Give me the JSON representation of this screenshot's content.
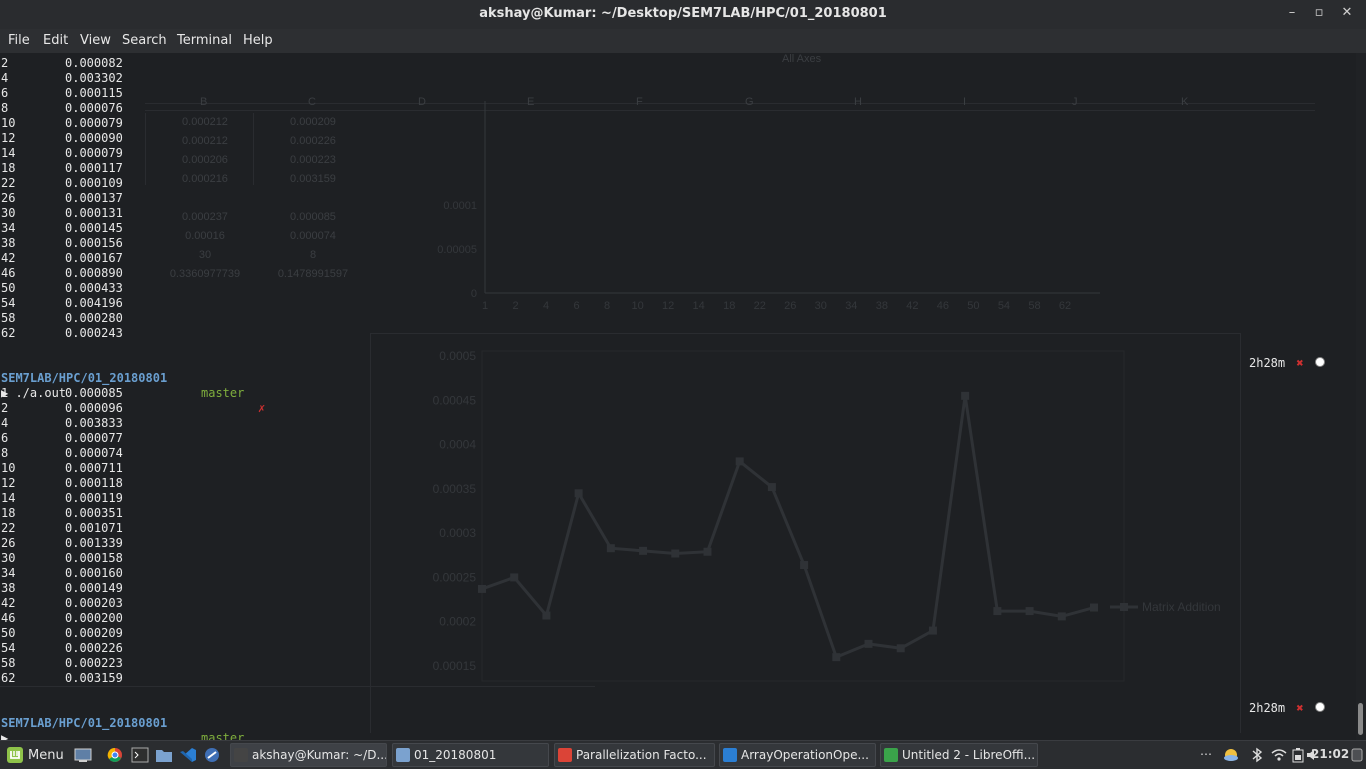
{
  "window": {
    "title": "akshay@Kumar: ~/Desktop/SEM7LAB/HPC/01_20180801",
    "minimize_glyph": "–",
    "restore_glyph": "▫",
    "close_glyph": "✕"
  },
  "menu": [
    "File",
    "Edit",
    "View",
    "Search",
    "Terminal",
    "Help"
  ],
  "terminal": {
    "first_output": [
      [
        "2",
        "0.000082"
      ],
      [
        "4",
        "0.003302"
      ],
      [
        "6",
        "0.000115"
      ],
      [
        "8",
        "0.000076"
      ],
      [
        "10",
        "0.000079"
      ],
      [
        "12",
        "0.000090"
      ],
      [
        "14",
        "0.000079"
      ],
      [
        "18",
        "0.000117"
      ],
      [
        "22",
        "0.000109"
      ],
      [
        "26",
        "0.000137"
      ],
      [
        "30",
        "0.000131"
      ],
      [
        "34",
        "0.000145"
      ],
      [
        "38",
        "0.000156"
      ],
      [
        "42",
        "0.000167"
      ],
      [
        "46",
        "0.000890"
      ],
      [
        "50",
        "0.000433"
      ],
      [
        "54",
        "0.004196"
      ],
      [
        "58",
        "0.000280"
      ],
      [
        "62",
        "0.000243"
      ]
    ],
    "prompt1": {
      "path": "SEM7LAB/HPC/01_20180801",
      "branch": "master",
      "mark": "✗",
      "elapsed": "2h28m",
      "elapsed_mark": "✖"
    },
    "command": "▶ ./a.out",
    "second_output": [
      [
        "1",
        "0.000085"
      ],
      [
        "2",
        "0.000096"
      ],
      [
        "4",
        "0.003833"
      ],
      [
        "6",
        "0.000077"
      ],
      [
        "8",
        "0.000074"
      ],
      [
        "10",
        "0.000711"
      ],
      [
        "12",
        "0.000118"
      ],
      [
        "14",
        "0.000119"
      ],
      [
        "18",
        "0.000351"
      ],
      [
        "22",
        "0.001071"
      ],
      [
        "26",
        "0.001339"
      ],
      [
        "30",
        "0.000158"
      ],
      [
        "34",
        "0.000160"
      ],
      [
        "38",
        "0.000149"
      ],
      [
        "42",
        "0.000203"
      ],
      [
        "46",
        "0.000200"
      ],
      [
        "50",
        "0.000209"
      ],
      [
        "54",
        "0.000226"
      ],
      [
        "58",
        "0.000223"
      ],
      [
        "62",
        "0.003159"
      ]
    ],
    "prompt2": {
      "path": "SEM7LAB/HPC/01_20180801",
      "branch": "master",
      "mark": "✗",
      "elapsed": "2h28m",
      "elapsed_mark": "✖"
    },
    "cursor_line": "▶ _"
  },
  "background_sheet": {
    "columns": [
      "B",
      "C",
      "D",
      "E",
      "F",
      "G",
      "H",
      "I",
      "J",
      "K"
    ],
    "cells_b": [
      "0.000212",
      "0.000212",
      "0.000206",
      "0.000216",
      "",
      "0.000237",
      "0.00016",
      "30",
      "0.3360977739"
    ],
    "cells_c": [
      "0.000209",
      "0.000226",
      "0.000223",
      "0.003159",
      "",
      "0.000085",
      "0.000074",
      "8",
      "0.1478991597"
    ],
    "toolbar_text": "All Axes"
  },
  "chart_data": [
    {
      "type": "line",
      "title": "",
      "xlabel": "",
      "ylabel": "",
      "categories": [
        "1",
        "2",
        "4",
        "6",
        "8",
        "10",
        "12",
        "14",
        "18",
        "22",
        "26",
        "30",
        "34",
        "38",
        "42",
        "46",
        "50",
        "54",
        "58",
        "62"
      ],
      "ylim": [
        0,
        0.00015
      ],
      "ytick_labels": [
        "0",
        "0.00005",
        "0.0001"
      ],
      "series": []
    },
    {
      "type": "line",
      "title": "",
      "ylim": [
        0.00015,
        0.0005
      ],
      "ytick_labels": [
        "0.00015",
        "0.0002",
        "0.00025",
        "0.0003",
        "0.00035",
        "0.0004",
        "0.00045",
        "0.0005"
      ],
      "legend": "right",
      "series": [
        {
          "name": "Matrix Addition",
          "values": [
            0.000237,
            0.00025,
            0.000207,
            0.000345,
            0.000283,
            0.00028,
            0.000277,
            0.000279,
            0.000381,
            0.000352,
            0.000264,
            0.00016,
            0.000175,
            0.00017,
            0.00019,
            0.000455,
            0.000212,
            0.000212,
            0.000206,
            0.000216
          ]
        }
      ]
    }
  ],
  "taskbar": {
    "menu_label": "Menu",
    "windows": [
      {
        "label": "akshay@Kumar: ~/D...",
        "icon": "terminal-icon"
      },
      {
        "label": "01_20180801",
        "icon": "folder-icon"
      },
      {
        "label": "Parallelization Facto...",
        "icon": "chrome-icon"
      },
      {
        "label": "ArrayOperationOpe...",
        "icon": "vscode-icon"
      },
      {
        "label": "Untitled 2 - LibreOffi...",
        "icon": "calc-icon"
      }
    ],
    "tray": {
      "more": "⋯",
      "time": "21:02"
    }
  }
}
